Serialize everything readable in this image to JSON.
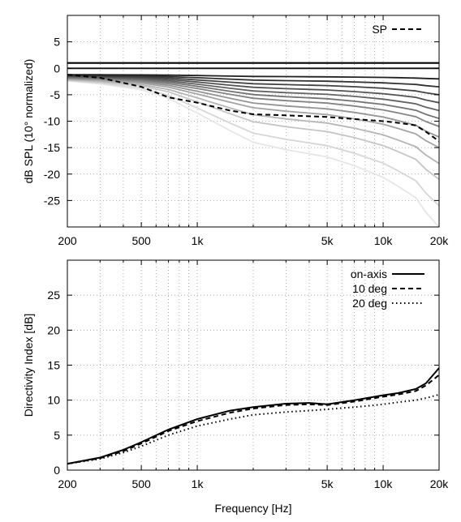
{
  "chart_data": [
    {
      "type": "line",
      "ylabel": "dB SPL (10° normalized)",
      "xlabel": "",
      "x_scale": "log",
      "xlim": [
        200,
        20000
      ],
      "ylim": [
        -30,
        10
      ],
      "grid": true,
      "legend_position": "top-right",
      "xticks": [
        {
          "value": 200,
          "label": "200"
        },
        {
          "value": 500,
          "label": "500"
        },
        {
          "value": 1000,
          "label": "1k"
        },
        {
          "value": 5000,
          "label": "5k"
        },
        {
          "value": 10000,
          "label": "10k"
        },
        {
          "value": 20000,
          "label": "20k"
        }
      ],
      "yticks": [
        {
          "value": 5,
          "label": "5"
        },
        {
          "value": 0,
          "label": "0"
        },
        {
          "value": -5,
          "label": "-5"
        },
        {
          "value": -10,
          "label": "-10"
        },
        {
          "value": -15,
          "label": "-15"
        },
        {
          "value": -20,
          "label": "-20"
        },
        {
          "value": -25,
          "label": "-25"
        }
      ],
      "x": [
        200,
        300,
        500,
        700,
        1000,
        1500,
        2000,
        3000,
        5000,
        7000,
        10000,
        12000,
        15000,
        17000,
        20000
      ],
      "family": {
        "count": 15,
        "color_start": "#000000",
        "color_end": "#e6e6e6",
        "endpoints": [
          1,
          0,
          -2,
          -3.5,
          -5,
          -6.5,
          -8,
          -9.5,
          -11,
          -13,
          -15,
          -18,
          -21,
          -26,
          -30
        ]
      },
      "series": [
        {
          "name": "SP",
          "color": "#000000",
          "dash": "dashed",
          "values": [
            -1.2,
            -1.8,
            -3.5,
            -5.5,
            -6.5,
            -8.0,
            -8.7,
            -8.9,
            -9.2,
            -9.6,
            -10.0,
            -10.3,
            -10.8,
            -12.0,
            -13.8
          ]
        }
      ]
    },
    {
      "type": "line",
      "xlabel": "Frequency [Hz]",
      "ylabel": "Directivity Index [dB]",
      "x_scale": "log",
      "xlim": [
        200,
        20000
      ],
      "ylim": [
        0,
        30
      ],
      "grid": true,
      "legend_position": "top-right",
      "xticks": [
        {
          "value": 200,
          "label": "200"
        },
        {
          "value": 500,
          "label": "500"
        },
        {
          "value": 1000,
          "label": "1k"
        },
        {
          "value": 5000,
          "label": "5k"
        },
        {
          "value": 10000,
          "label": "10k"
        },
        {
          "value": 20000,
          "label": "20k"
        }
      ],
      "yticks": [
        {
          "value": 0,
          "label": "0"
        },
        {
          "value": 5,
          "label": "5"
        },
        {
          "value": 10,
          "label": "10"
        },
        {
          "value": 15,
          "label": "15"
        },
        {
          "value": 20,
          "label": "20"
        },
        {
          "value": 25,
          "label": "25"
        }
      ],
      "x": [
        200,
        300,
        400,
        500,
        700,
        1000,
        1500,
        2000,
        3000,
        4000,
        5000,
        7000,
        10000,
        12000,
        15000,
        17000,
        20000
      ],
      "series": [
        {
          "name": "on-axis",
          "color": "#000000",
          "dash": "solid",
          "values": [
            0.9,
            1.8,
            2.9,
            4.0,
            5.8,
            7.3,
            8.5,
            9.0,
            9.5,
            9.6,
            9.4,
            10.0,
            10.7,
            11.0,
            11.6,
            12.4,
            14.6
          ]
        },
        {
          "name": "10 deg",
          "color": "#000000",
          "dash": "dashed",
          "values": [
            0.9,
            1.7,
            2.7,
            3.8,
            5.6,
            7.0,
            8.2,
            8.8,
            9.3,
            9.4,
            9.3,
            9.8,
            10.5,
            10.8,
            11.3,
            12.1,
            13.6
          ]
        },
        {
          "name": "20 deg",
          "color": "#000000",
          "dash": "dotted",
          "values": [
            0.9,
            1.6,
            2.5,
            3.4,
            5.0,
            6.3,
            7.3,
            7.9,
            8.3,
            8.5,
            8.7,
            9.0,
            9.4,
            9.7,
            10.0,
            10.3,
            10.8
          ]
        }
      ]
    }
  ]
}
